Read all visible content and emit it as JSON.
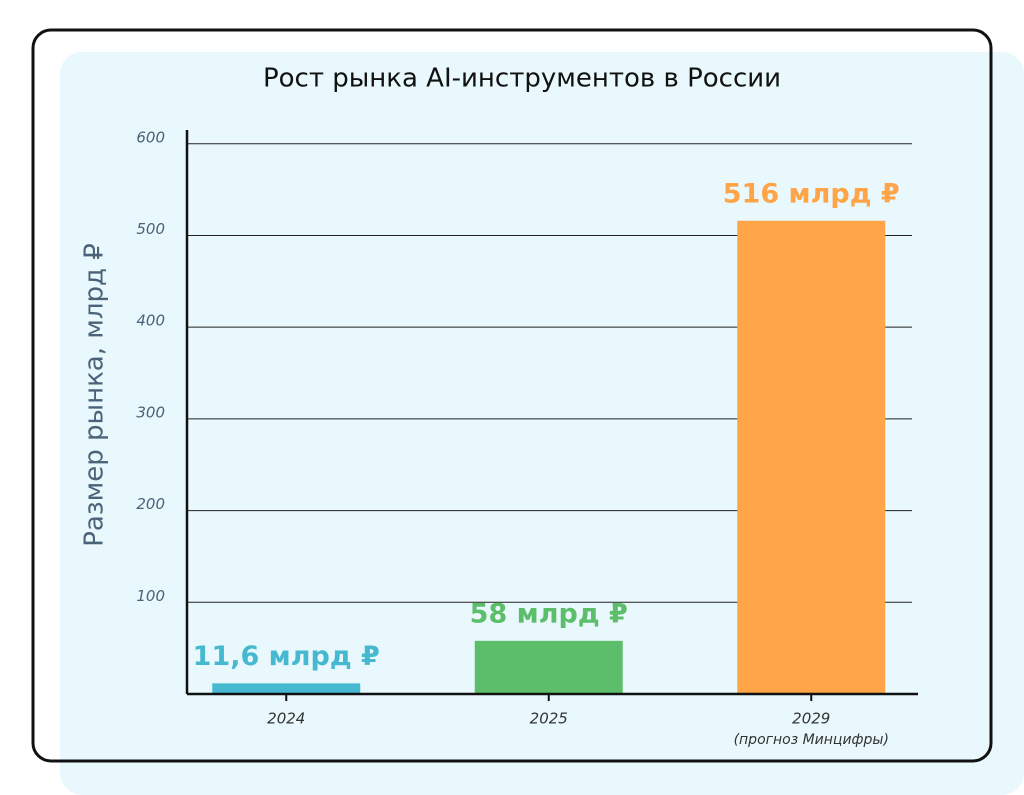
{
  "chart_data": {
    "type": "bar",
    "title": "Рост рынка AI-инструментов в России",
    "y_label": "Размер рынка, млрд ₽",
    "categories": [
      "2024",
      "2025",
      "2029"
    ],
    "category_notes": [
      null,
      null,
      "(прогноз Минцифры)"
    ],
    "values": [
      11.6,
      58,
      516
    ],
    "value_labels": [
      "11,6 млрд ₽",
      "58 млрд ₽",
      "516 млрд ₽"
    ],
    "colors": [
      "#46b9d0",
      "#5cbd6a",
      "#ffa447"
    ],
    "ylim": [
      0,
      615
    ],
    "yticks": [
      100,
      200,
      300,
      400,
      500,
      600
    ],
    "grid": true
  }
}
